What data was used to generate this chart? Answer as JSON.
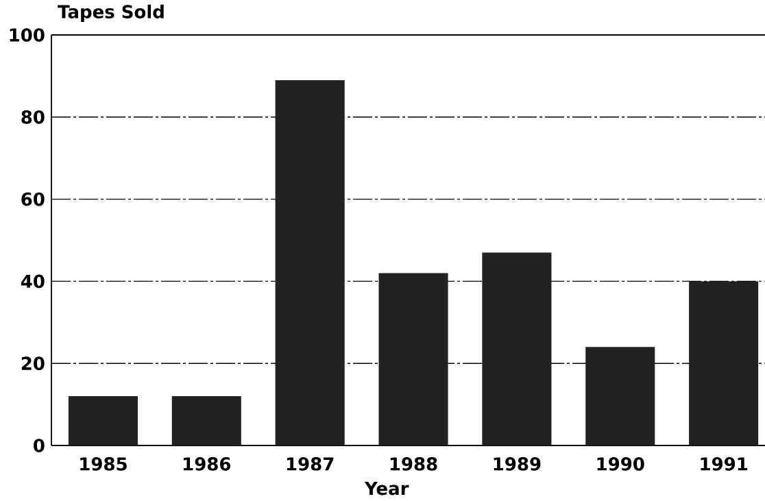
{
  "chart_data": {
    "type": "bar",
    "ylabel": "Tapes Sold",
    "xlabel": "Year",
    "categories": [
      "1985",
      "1986",
      "1987",
      "1988",
      "1989",
      "1990",
      "1991"
    ],
    "values": [
      12,
      12,
      89,
      42,
      47,
      24,
      40
    ],
    "color": "#222222",
    "ylim": [
      0,
      100
    ],
    "yticks": [
      0,
      20,
      40,
      60,
      80,
      100
    ],
    "grid": "y"
  }
}
